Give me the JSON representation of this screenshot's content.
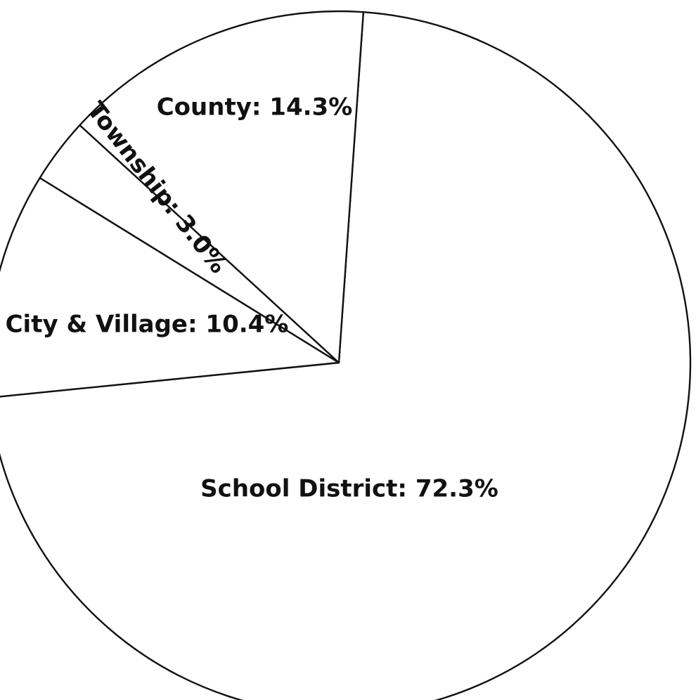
{
  "chart_data": {
    "type": "pie",
    "slices": [
      {
        "label": "School District: 72.3%",
        "category": "School District",
        "value": 72.3
      },
      {
        "label": "City & Village: 10.4%",
        "category": "City & Village",
        "value": 10.4
      },
      {
        "label": "Township: 3.0%",
        "category": "Township",
        "value": 3.0
      },
      {
        "label": "County: 14.3%",
        "category": "County",
        "value": 14.3
      }
    ],
    "start_angle_deg": 86,
    "direction": "clockwise",
    "legend": "none",
    "colors": {
      "fill": "#ffffff",
      "stroke": "#111111",
      "text": "#111111"
    }
  }
}
